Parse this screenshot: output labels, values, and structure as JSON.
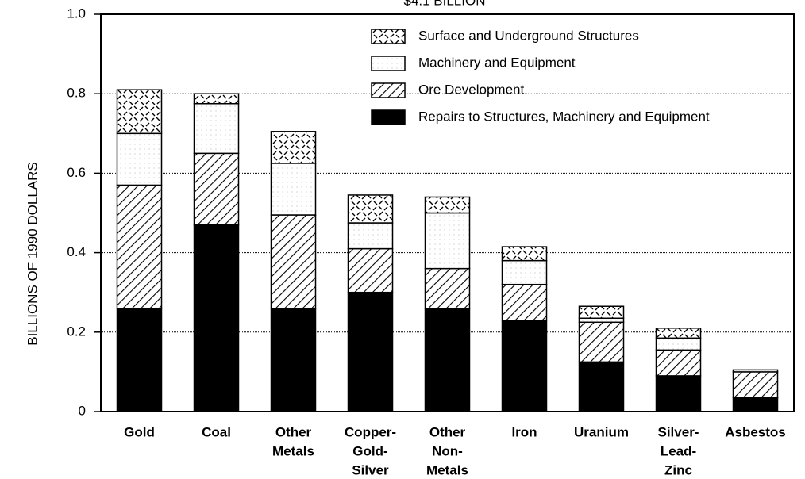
{
  "chart_data": {
    "type": "stacked_bar",
    "title": "$4.1 BILLION",
    "y_label": "BILLIONS OF 1990 DOLLARS",
    "categories": [
      [
        "Gold"
      ],
      [
        "Coal"
      ],
      [
        "Other",
        "Metals"
      ],
      [
        "Copper-",
        "Gold-",
        "Silver"
      ],
      [
        "Other",
        "Non-",
        "Metals"
      ],
      [
        "Iron"
      ],
      [
        "Uranium"
      ],
      [
        "Silver-",
        "Lead-",
        "Zinc"
      ],
      [
        "Asbestos"
      ]
    ],
    "series": [
      {
        "name": "Repairs to Structures, Machinery and Equipment",
        "color": "#000000",
        "values": [
          0.26,
          0.47,
          0.26,
          0.3,
          0.26,
          0.23,
          0.125,
          0.09,
          0.035
        ]
      },
      {
        "name": "Ore Development",
        "color": "#ffffff",
        "values": [
          0.31,
          0.18,
          0.235,
          0.11,
          0.1,
          0.09,
          0.1,
          0.065,
          0.065
        ]
      },
      {
        "name": "Machinery and Equipment",
        "color": "#ffffff",
        "values": [
          0.13,
          0.125,
          0.13,
          0.065,
          0.14,
          0.06,
          0.01,
          0.03,
          0.005
        ]
      },
      {
        "name": "Surface and Underground Structures",
        "color": "#ffffff",
        "values": [
          0.11,
          0.025,
          0.08,
          0.07,
          0.04,
          0.035,
          0.03,
          0.025,
          0
        ]
      }
    ],
    "ylim": [
      0,
      1
    ],
    "yticks": [
      0,
      0.2,
      0.4,
      0.6,
      0.8,
      {
        "value": 1,
        "label": "1.0"
      }
    ],
    "grid": true
  }
}
